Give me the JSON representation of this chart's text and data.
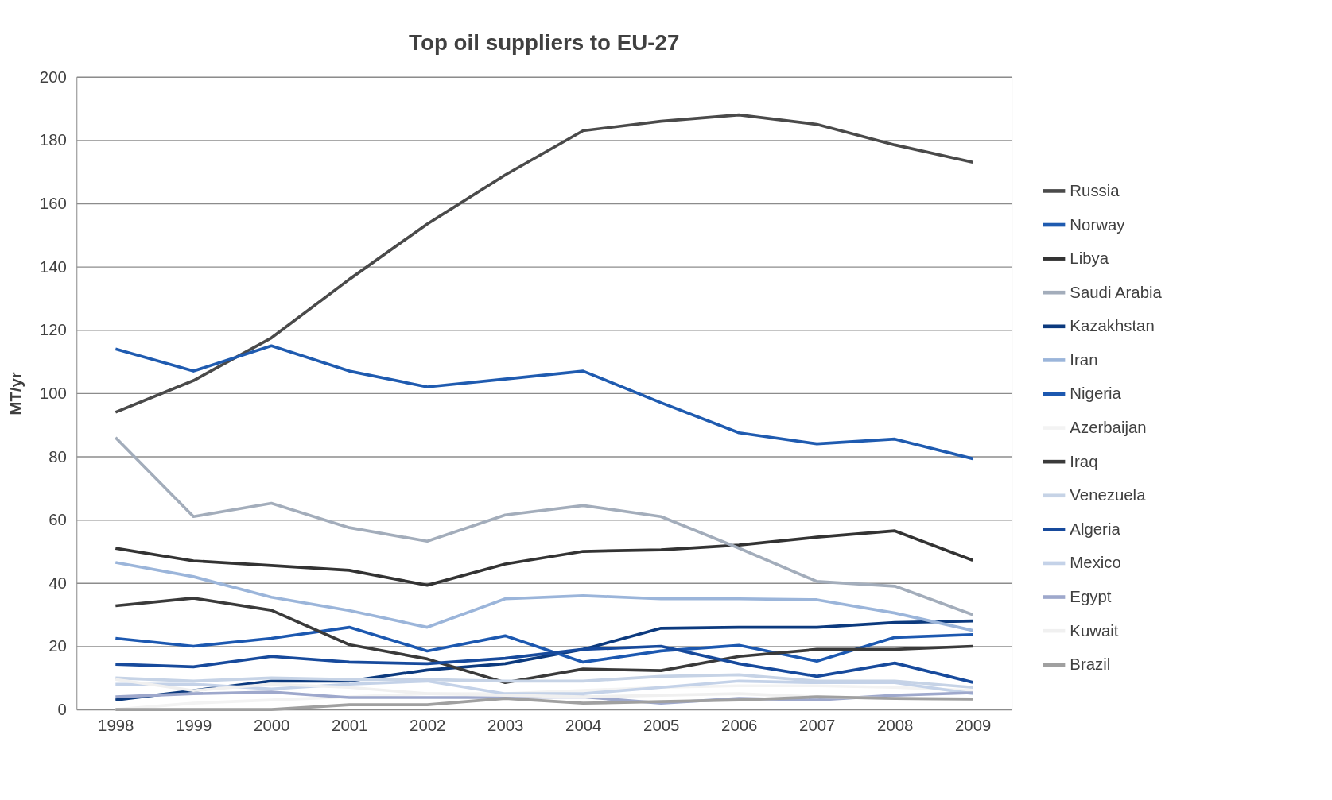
{
  "chart_data": {
    "type": "line",
    "title": "Top oil suppliers to EU-27",
    "ylabel": "MT/yr",
    "categories": [
      "1998",
      "1999",
      "2000",
      "2001",
      "2002",
      "2003",
      "2004",
      "2005",
      "2006",
      "2007",
      "2008",
      "2009"
    ],
    "ylim": [
      0,
      200
    ],
    "yticks": [
      0,
      20,
      40,
      60,
      80,
      100,
      120,
      140,
      160,
      180,
      200
    ],
    "grid": "y",
    "legend": "right",
    "marker": "none",
    "line_style": "solid",
    "series": [
      {
        "name": "Russia",
        "color": "#4a4a4a",
        "values": [
          94,
          104,
          117.5,
          136,
          153.5,
          169,
          183,
          186,
          188,
          185,
          178.5,
          173
        ]
      },
      {
        "name": "Norway",
        "color": "#1f5bb0",
        "values": [
          114,
          107,
          115,
          107,
          102,
          104.5,
          107,
          97,
          87.5,
          84,
          85.5,
          79.3
        ]
      },
      {
        "name": "Libya",
        "color": "#333333",
        "values": [
          51,
          47,
          45.5,
          44,
          39.3,
          46,
          50,
          50.5,
          52,
          54.5,
          56.5,
          47.2
        ]
      },
      {
        "name": "Saudi Arabia",
        "color": "#a3adbb",
        "values": [
          86,
          61,
          65.2,
          57.5,
          53.2,
          61.5,
          64.5,
          61,
          51,
          40.5,
          39,
          30
        ]
      },
      {
        "name": "Kazakhstan",
        "color": "#0c3a7e",
        "values": [
          3,
          6,
          9,
          9,
          12.5,
          14.5,
          19,
          25.7,
          26,
          26,
          27.5,
          28
        ]
      },
      {
        "name": "Iran",
        "color": "#9bb5da",
        "values": [
          46.5,
          42,
          35.5,
          31.3,
          26,
          35,
          36,
          35,
          35,
          34.7,
          30.5,
          25
        ]
      },
      {
        "name": "Nigeria",
        "color": "#1c58b0",
        "values": [
          22.5,
          20,
          22.5,
          26,
          18.5,
          23.3,
          15,
          18.5,
          20.3,
          15.3,
          22.8,
          23.7
        ]
      },
      {
        "name": "Azerbaijan",
        "color": "#f3f3f3",
        "values": [
          0,
          2,
          3,
          4,
          5,
          5,
          6,
          7,
          7.5,
          7.5,
          7,
          6
        ]
      },
      {
        "name": "Iraq",
        "color": "#3a3a3a",
        "values": [
          32.8,
          35.2,
          31.4,
          20.5,
          16,
          8.5,
          12.8,
          12.3,
          16.8,
          19,
          19,
          20
        ]
      },
      {
        "name": "Venezuela",
        "color": "#c6d3e6",
        "values": [
          10,
          9,
          10,
          9.5,
          9.5,
          9,
          9,
          10.5,
          11,
          9,
          9,
          7
        ]
      },
      {
        "name": "Algeria",
        "color": "#174a9c",
        "values": [
          14.3,
          13.5,
          16.8,
          15,
          14.5,
          16.2,
          19,
          20,
          14.5,
          10.5,
          14.7,
          8.6
        ]
      },
      {
        "name": "Mexico",
        "color": "#c4d2e8",
        "values": [
          8,
          8,
          6.5,
          8,
          9,
          5,
          5,
          7,
          9,
          8.5,
          8.5,
          5
        ]
      },
      {
        "name": "Egypt",
        "color": "#9ea8cc",
        "values": [
          4,
          5,
          5.5,
          3.8,
          3.8,
          3.8,
          4,
          2,
          3.5,
          3,
          4.5,
          5.3
        ]
      },
      {
        "name": "Kuwait",
        "color": "#f0f0f0",
        "values": [
          9.5,
          6,
          8,
          7,
          5,
          4.5,
          4,
          4.5,
          5,
          4,
          3.5,
          3
        ]
      },
      {
        "name": "Brazil",
        "color": "#a0a0a0",
        "values": [
          0,
          0,
          0,
          1.5,
          1.5,
          3.5,
          2,
          2.5,
          3,
          4,
          3.5,
          3.3
        ]
      }
    ]
  }
}
